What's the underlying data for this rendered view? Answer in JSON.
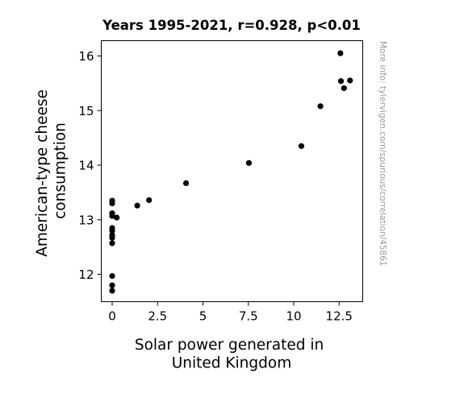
{
  "chart_data": {
    "type": "scatter",
    "title": "Years 1995-2021, r=0.928, p<0.01",
    "xlabel_lines": [
      "Solar power generated in",
      "United Kingdom"
    ],
    "ylabel_lines": [
      "American-type cheese",
      "consumption"
    ],
    "watermark": "More info: tylervigen.com/spurious/correlation/45861",
    "xlim": [
      -0.6,
      13.8
    ],
    "ylim": [
      11.5,
      16.28
    ],
    "xticks": [
      {
        "value": 0,
        "label": "0"
      },
      {
        "value": 2.5,
        "label": "2.5"
      },
      {
        "value": 5,
        "label": "5"
      },
      {
        "value": 7.5,
        "label": "7.5"
      },
      {
        "value": 10,
        "label": "10"
      },
      {
        "value": 12.5,
        "label": "12.5"
      }
    ],
    "yticks": [
      {
        "value": 12,
        "label": "12"
      },
      {
        "value": 13,
        "label": "13"
      },
      {
        "value": 14,
        "label": "14"
      },
      {
        "value": 15,
        "label": "15"
      },
      {
        "value": 16,
        "label": "16"
      }
    ],
    "grid": false,
    "marker_color": "#000000",
    "points": [
      {
        "x": 0.0,
        "y": 11.7
      },
      {
        "x": 0.0,
        "y": 11.8
      },
      {
        "x": 0.0,
        "y": 11.97
      },
      {
        "x": 0.0,
        "y": 12.57
      },
      {
        "x": 0.0,
        "y": 12.67
      },
      {
        "x": 0.0,
        "y": 12.72
      },
      {
        "x": 0.0,
        "y": 12.8
      },
      {
        "x": 0.0,
        "y": 12.85
      },
      {
        "x": 0.0,
        "y": 13.07
      },
      {
        "x": 0.0,
        "y": 13.12
      },
      {
        "x": 0.0,
        "y": 13.3
      },
      {
        "x": 0.0,
        "y": 13.35
      },
      {
        "x": 0.25,
        "y": 13.04
      },
      {
        "x": 1.38,
        "y": 13.26
      },
      {
        "x": 2.03,
        "y": 13.36
      },
      {
        "x": 4.07,
        "y": 13.67
      },
      {
        "x": 7.53,
        "y": 14.04
      },
      {
        "x": 10.42,
        "y": 14.35
      },
      {
        "x": 11.47,
        "y": 15.08
      },
      {
        "x": 12.57,
        "y": 16.05
      },
      {
        "x": 12.6,
        "y": 15.54
      },
      {
        "x": 12.77,
        "y": 15.41
      },
      {
        "x": 13.1,
        "y": 15.55
      }
    ]
  }
}
